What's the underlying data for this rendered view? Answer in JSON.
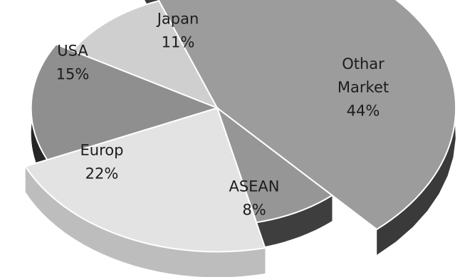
{
  "chart_data": {
    "type": "pie",
    "style": "3d-exploded",
    "categories": [
      "Japan",
      "Other Market",
      "ASEAN",
      "Europ",
      "USA"
    ],
    "values": [
      11,
      44,
      8,
      22,
      15
    ],
    "value_labels": [
      "11%",
      "44%",
      "8%",
      "22%",
      "15%"
    ],
    "label_lines": [
      [
        "Japan",
        "11%"
      ],
      [
        "Othar",
        "Market",
        "44%"
      ],
      [
        "ASEAN",
        "8%"
      ],
      [
        "Europ",
        "22%"
      ],
      [
        "USA",
        "15%"
      ]
    ],
    "colors": [
      "#cfcfcf",
      "#9c9c9c",
      "#969696",
      "#e3e3e3",
      "#8f8f8f"
    ],
    "side_colors": [
      "#2f2f2f",
      "#3a3a3a",
      "#3e3e3e",
      "#bdbdbd",
      "#262626"
    ],
    "label_color": "#1c1c1c",
    "title": "",
    "legend": "none"
  }
}
